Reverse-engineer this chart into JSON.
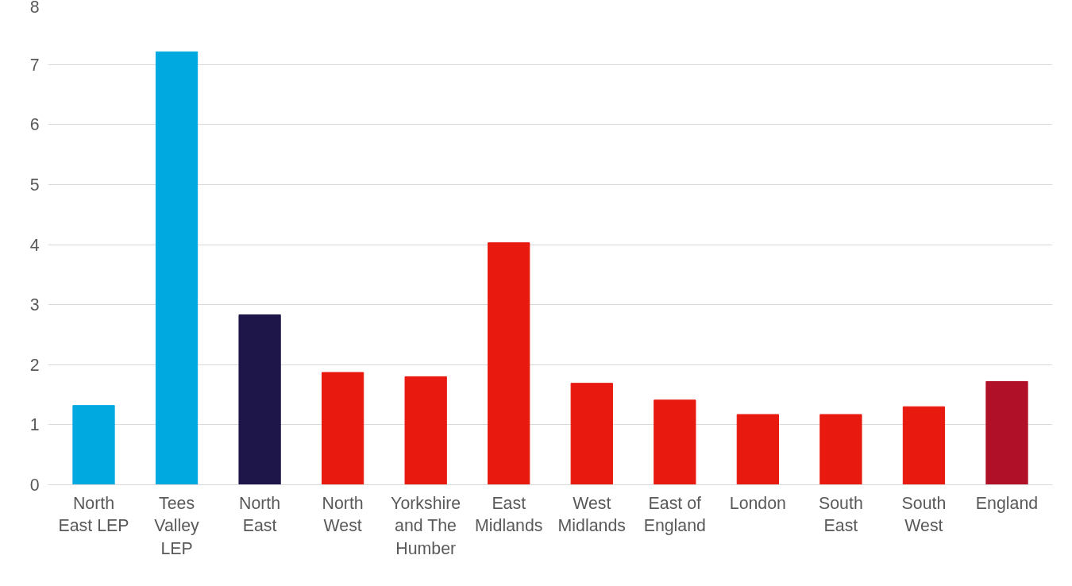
{
  "chart_data": {
    "type": "bar",
    "categories": [
      "North East LEP",
      "Tees Valley LEP",
      "North East",
      "North West",
      "Yorkshire and The Humber",
      "East Midlands",
      "West Midlands",
      "East of England",
      "London",
      "South East",
      "South West",
      "England"
    ],
    "values": [
      1.32,
      7.21,
      2.83,
      1.87,
      1.8,
      4.03,
      1.69,
      1.41,
      1.17,
      1.17,
      1.3,
      1.72
    ],
    "colors": [
      "#00a9e0",
      "#00a9e0",
      "#1e1548",
      "#e8190f",
      "#e8190f",
      "#e8190f",
      "#e8190f",
      "#e8190f",
      "#e8190f",
      "#e8190f",
      "#e8190f",
      "#b01028"
    ],
    "ylim": [
      0,
      8
    ],
    "yticks": [
      0,
      1,
      2,
      3,
      4,
      5,
      6,
      7,
      8
    ],
    "grid": "y"
  }
}
